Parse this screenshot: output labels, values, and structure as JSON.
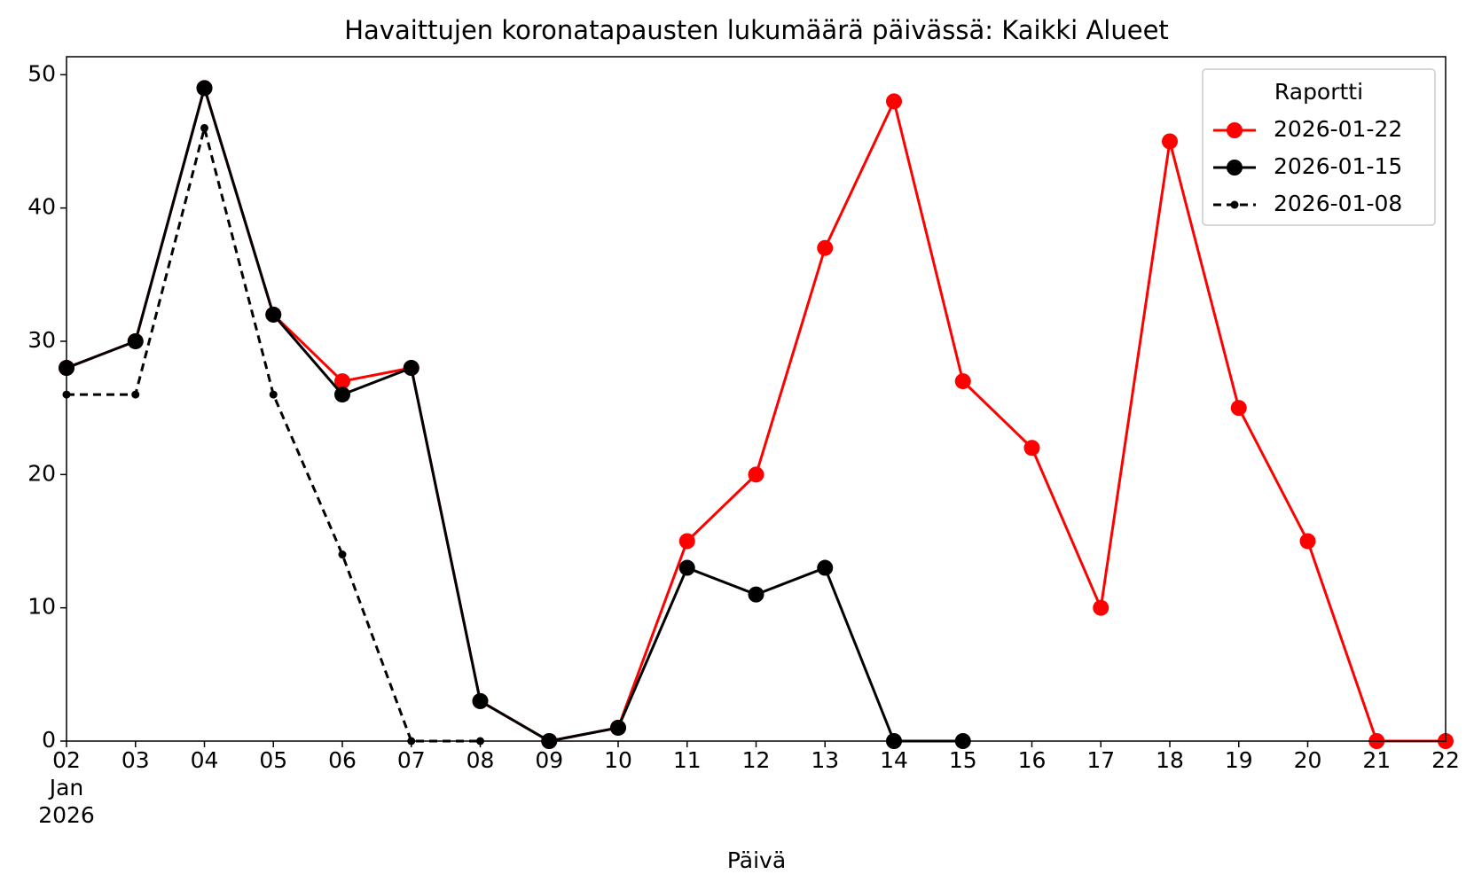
{
  "chart_data": {
    "type": "line",
    "title": "Havaittujen koronatapausten lukumäärä päivässä: Kaikki Alueet",
    "x_label": "Päivä",
    "x": [
      "2026-01-02",
      "2026-01-03",
      "2026-01-04",
      "2026-01-05",
      "2026-01-06",
      "2026-01-07",
      "2026-01-08",
      "2026-01-09",
      "2026-01-10",
      "2026-01-11",
      "2026-01-12",
      "2026-01-13",
      "2026-01-14",
      "2026-01-15",
      "2026-01-16",
      "2026-01-17",
      "2026-01-18",
      "2026-01-19",
      "2026-01-20",
      "2026-01-21",
      "2026-01-22"
    ],
    "series": [
      {
        "name": "2026-01-22",
        "color": "#ff0000",
        "linestyle": "solid",
        "marker": "large",
        "values": [
          28,
          30,
          49,
          32,
          27,
          28,
          3,
          0,
          1,
          15,
          20,
          37,
          48,
          27,
          22,
          10,
          45,
          25,
          15,
          0,
          0
        ]
      },
      {
        "name": "2026-01-15",
        "color": "#000000",
        "linestyle": "solid",
        "marker": "large",
        "values": [
          28,
          30,
          49,
          32,
          26,
          28,
          3,
          0,
          1,
          13,
          11,
          13,
          0,
          0,
          null,
          null,
          null,
          null,
          null,
          null,
          null
        ]
      },
      {
        "name": "2026-01-08",
        "color": "#000000",
        "linestyle": "dashed",
        "marker": "small",
        "values": [
          26,
          26,
          46,
          26,
          14,
          0,
          0,
          null,
          null,
          null,
          null,
          null,
          null,
          null,
          null,
          null,
          null,
          null,
          null,
          null,
          null
        ]
      }
    ],
    "legend_title": "Raportti",
    "legend": "upper right",
    "xlim": [
      "2026-01-02",
      "2026-01-22"
    ],
    "xticks": [
      {
        "value": "2026-01-02",
        "label": "02\nJan\n2026"
      },
      {
        "value": "2026-01-03",
        "label": "03"
      },
      {
        "value": "2026-01-04",
        "label": "04"
      },
      {
        "value": "2026-01-05",
        "label": "05"
      },
      {
        "value": "2026-01-06",
        "label": "06"
      },
      {
        "value": "2026-01-07",
        "label": "07"
      },
      {
        "value": "2026-01-08",
        "label": "08"
      },
      {
        "value": "2026-01-09",
        "label": "09"
      },
      {
        "value": "2026-01-10",
        "label": "10"
      },
      {
        "value": "2026-01-11",
        "label": "11"
      },
      {
        "value": "2026-01-12",
        "label": "12"
      },
      {
        "value": "2026-01-13",
        "label": "13"
      },
      {
        "value": "2026-01-14",
        "label": "14"
      },
      {
        "value": "2026-01-15",
        "label": "15"
      },
      {
        "value": "2026-01-16",
        "label": "16"
      },
      {
        "value": "2026-01-17",
        "label": "17"
      },
      {
        "value": "2026-01-18",
        "label": "18"
      },
      {
        "value": "2026-01-19",
        "label": "19"
      },
      {
        "value": "2026-01-20",
        "label": "20"
      },
      {
        "value": "2026-01-21",
        "label": "21"
      },
      {
        "value": "2026-01-22",
        "label": "22"
      }
    ],
    "ylim": [
      0,
      51.35
    ],
    "yticks": [
      0,
      10,
      20,
      30,
      40,
      50
    ],
    "grid": false
  }
}
